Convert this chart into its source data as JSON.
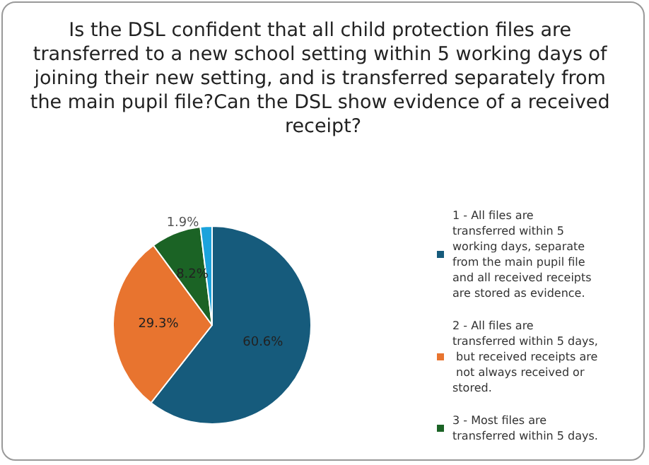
{
  "chart_data": {
    "type": "pie",
    "title": "Is the DSL confident that all child protection files are transferred to a new school setting within 5 working days of joining their new setting, and is transferred separately from the main pupil file?Can the DSL show evidence of a received receipt?",
    "categories": [
      "1 - All files are transferred within 5 working days, separate from the main pupil file and all received receipts are stored as evidence.",
      "2 - All files are transferred within 5 days, but received receipts are not always received or stored.",
      "3 - Most files are transferred within 5 days.",
      null
    ],
    "values": [
      60.6,
      29.3,
      8.2,
      1.9
    ],
    "value_labels": [
      "60.6%",
      "29.3%",
      "8.2%",
      "1.9%"
    ],
    "colors": [
      "#165b7c",
      "#e8742f",
      "#1b6325",
      "#1ba3dc"
    ],
    "legend": "right"
  }
}
